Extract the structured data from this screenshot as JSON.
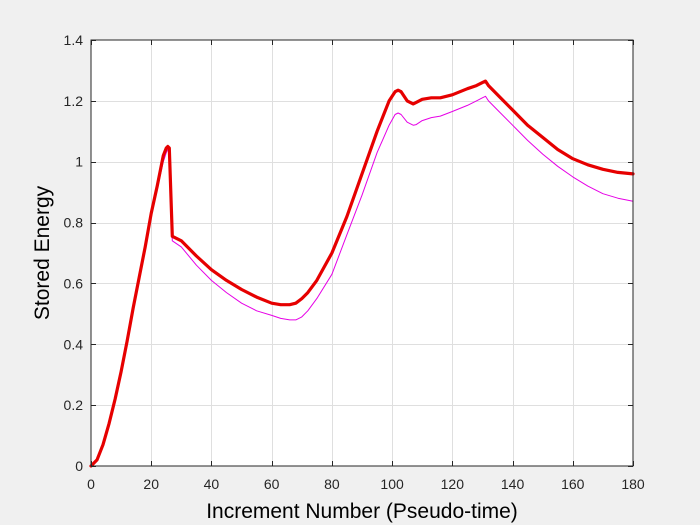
{
  "colors": {
    "figure_background": "#f0f0f0",
    "axes_background": "#ffffff",
    "axes_edge": "#262626",
    "grid": "#dfdfdf"
  },
  "chart_data": {
    "type": "line",
    "title": "",
    "xlabel": "Increment Number (Pseudo-time)",
    "ylabel": "Stored Energy",
    "xlim": [
      0,
      180
    ],
    "ylim": [
      0,
      1.4
    ],
    "xticks": [
      0,
      20,
      40,
      60,
      80,
      100,
      120,
      140,
      160,
      180
    ],
    "yticks": [
      0,
      0.2,
      0.4,
      0.6,
      0.8,
      1,
      1.2,
      1.4
    ],
    "xtick_labels": [
      "0",
      "20",
      "40",
      "60",
      "80",
      "100",
      "120",
      "140",
      "160",
      "180"
    ],
    "ytick_labels": [
      "0",
      "0.2",
      "0.4",
      "0.6",
      "0.8",
      "1",
      "1.2",
      "1.4"
    ],
    "grid": true,
    "legend": "none",
    "series": [
      {
        "color": "#e600e6",
        "style": "thin",
        "x": [
          0,
          2,
          4,
          6,
          8,
          10,
          12,
          14,
          16,
          18,
          20,
          22,
          24,
          25,
          25.5,
          26,
          27,
          30,
          35,
          40,
          45,
          50,
          55,
          60,
          63,
          66,
          68,
          70,
          72,
          75,
          80,
          85,
          90,
          95,
          99,
          101,
          102,
          103,
          105,
          107,
          108,
          110,
          113,
          116,
          120,
          125,
          128,
          130,
          131,
          132,
          135,
          140,
          145,
          150,
          155,
          160,
          165,
          170,
          175,
          180
        ],
        "y": [
          0,
          0.02,
          0.07,
          0.14,
          0.22,
          0.31,
          0.41,
          0.52,
          0.62,
          0.72,
          0.83,
          0.91,
          1.0,
          1.03,
          1.04,
          1.04,
          0.74,
          0.72,
          0.66,
          0.61,
          0.57,
          0.535,
          0.51,
          0.495,
          0.485,
          0.48,
          0.48,
          0.49,
          0.51,
          0.55,
          0.63,
          0.76,
          0.89,
          1.03,
          1.12,
          1.155,
          1.16,
          1.155,
          1.13,
          1.12,
          1.122,
          1.135,
          1.145,
          1.15,
          1.165,
          1.185,
          1.2,
          1.21,
          1.215,
          1.2,
          1.17,
          1.12,
          1.07,
          1.025,
          0.985,
          0.95,
          0.92,
          0.895,
          0.88,
          0.87
        ]
      },
      {
        "color": "#e60000",
        "style": "thick",
        "x": [
          0,
          2,
          4,
          6,
          8,
          10,
          12,
          14,
          16,
          18,
          20,
          22,
          24,
          25,
          25.5,
          26,
          27,
          30,
          35,
          40,
          45,
          50,
          55,
          60,
          63,
          66,
          68,
          70,
          72,
          75,
          80,
          85,
          90,
          95,
          99,
          101,
          102,
          103,
          105,
          107,
          108,
          110,
          113,
          116,
          120,
          125,
          128,
          130,
          131,
          132,
          135,
          140,
          145,
          150,
          155,
          160,
          165,
          170,
          175,
          180
        ],
        "y": [
          0,
          0.02,
          0.07,
          0.14,
          0.22,
          0.31,
          0.41,
          0.52,
          0.62,
          0.72,
          0.83,
          0.92,
          1.02,
          1.045,
          1.05,
          1.045,
          0.755,
          0.74,
          0.69,
          0.645,
          0.61,
          0.58,
          0.555,
          0.535,
          0.53,
          0.53,
          0.535,
          0.55,
          0.57,
          0.61,
          0.7,
          0.82,
          0.96,
          1.1,
          1.2,
          1.23,
          1.235,
          1.23,
          1.2,
          1.19,
          1.195,
          1.205,
          1.21,
          1.21,
          1.22,
          1.24,
          1.25,
          1.26,
          1.265,
          1.25,
          1.22,
          1.17,
          1.12,
          1.08,
          1.04,
          1.01,
          0.99,
          0.975,
          0.965,
          0.96
        ]
      }
    ]
  }
}
